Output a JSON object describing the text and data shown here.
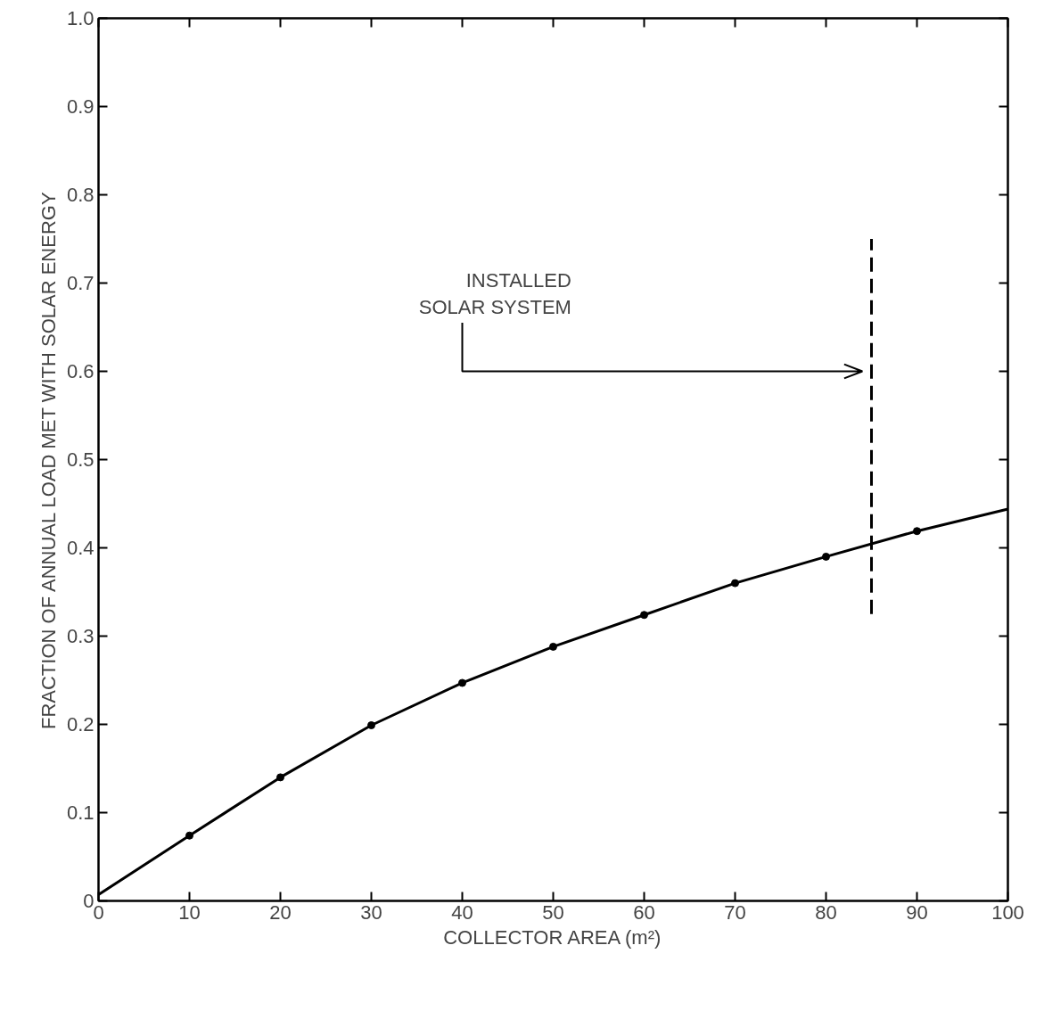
{
  "chart_data": {
    "type": "line",
    "xlabel": "COLLECTOR AREA (m²)",
    "ylabel": "FRACTION OF ANNUAL LOAD MET WITH SOLAR ENERGY",
    "xlim": [
      0,
      100
    ],
    "ylim": [
      0,
      1.0
    ],
    "xticks": [
      0,
      10,
      20,
      30,
      40,
      50,
      60,
      70,
      80,
      90,
      100
    ],
    "yticks": [
      0,
      0.1,
      0.2,
      0.3,
      0.4,
      0.5,
      0.6,
      0.7,
      0.8,
      0.9,
      {
        "value": 1.0,
        "label": "1.0"
      }
    ],
    "grid": false,
    "series": [
      {
        "color": "#000000",
        "marker": "none",
        "line_style": "solid",
        "x": [
          0,
          10,
          20,
          30,
          40,
          50,
          60,
          70,
          80,
          90,
          100
        ],
        "values": [
          0.007,
          0.074,
          0.14,
          0.199,
          0.247,
          0.288,
          0.324,
          0.36,
          0.39,
          0.419,
          0.444
        ]
      },
      {
        "type": "scatter",
        "color": "#000000",
        "marker": "circle",
        "x": [
          10,
          20,
          30,
          40,
          50,
          60,
          70,
          80,
          90
        ],
        "values": [
          0.074,
          0.14,
          0.199,
          0.247,
          0.288,
          0.324,
          0.36,
          0.39,
          0.419
        ]
      },
      {
        "type": "line",
        "color": "#000000",
        "marker": "none",
        "line_style": "dashed",
        "x": [
          85,
          85
        ],
        "values": [
          0.325,
          0.75
        ]
      }
    ],
    "annotations": [
      "INSTALLED\nSOLAR SYSTEM"
    ]
  }
}
